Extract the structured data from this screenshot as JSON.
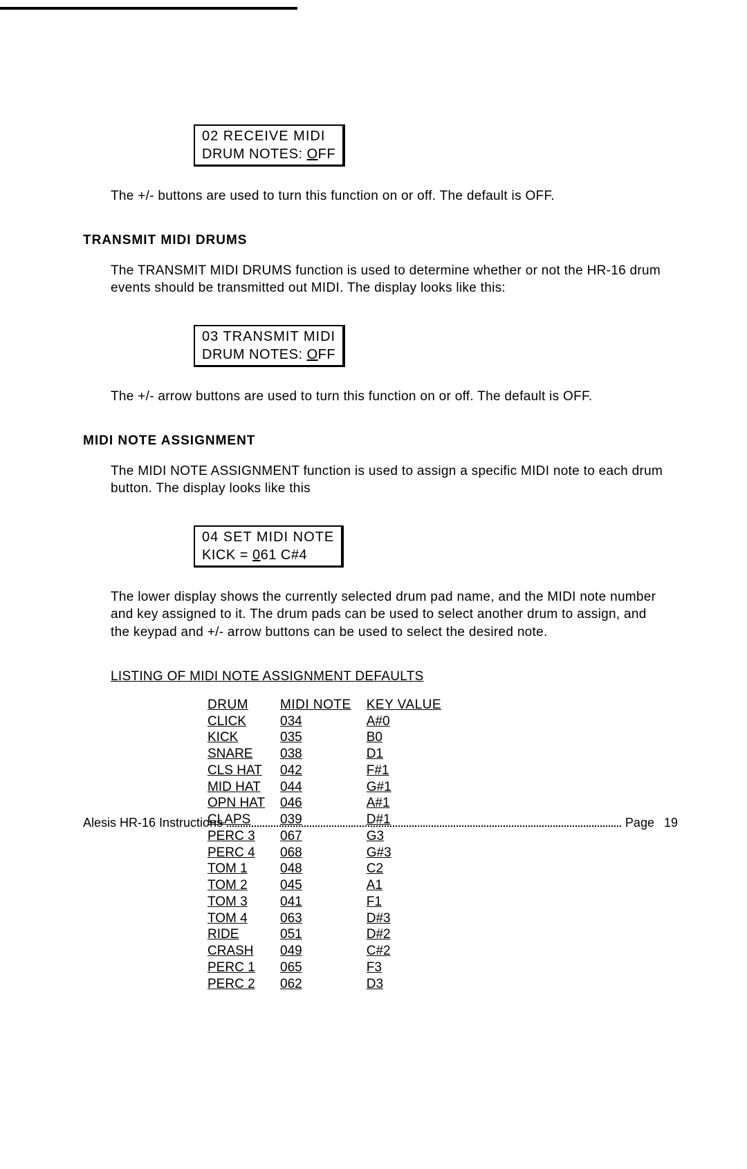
{
  "display1": {
    "line1": "02 RECEIVE MIDI",
    "line2_prefix": "DRUM NOTES: ",
    "line2_value_u": "O",
    "line2_value_rest": "FF"
  },
  "para1": "The +/- buttons are used to turn this function on or off.  The default is OFF.",
  "heading1": "TRANSMIT MIDI DRUMS",
  "para2": "The TRANSMIT MIDI DRUMS function is used to determine whether or not the HR-16 drum events should be transmitted out MIDI.  The display looks like this:",
  "display2": {
    "line1": "03 TRANSMIT MIDI",
    "line2_prefix": "DRUM NOTES: ",
    "line2_value_u": "O",
    "line2_value_rest": "FF"
  },
  "para3": "The +/- arrow buttons are used to turn this function on or off.  The default is OFF.",
  "heading2": "MIDI NOTE ASSIGNMENT",
  "para4": "The MIDI NOTE ASSIGNMENT function is used to assign a specific MIDI note to each drum button.  The display looks like this",
  "display3": {
    "line1": "04 SET MIDI NOTE",
    "line2_prefix": "KICK = ",
    "line2_value_u": "0",
    "line2_value_rest": "61  C#4"
  },
  "para5": "The lower display shows the currently selected drum pad name, and the MIDI note number and key assigned to it.  The drum pads can be used to select another drum to assign, and the keypad and +/- arrow buttons can be used to select the desired note.",
  "table_title": "LISTING OF MIDI NOTE ASSIGNMENT DEFAULTS",
  "table": {
    "headers": [
      "DRUM",
      "MIDI NOTE",
      "KEY VALUE"
    ],
    "rows": [
      [
        "CLICK",
        "034",
        "A#0"
      ],
      [
        "KICK",
        "035",
        "B0"
      ],
      [
        "SNARE",
        "038",
        "D1"
      ],
      [
        "CLS HAT",
        "042",
        "F#1"
      ],
      [
        "MID HAT",
        "044",
        "G#1"
      ],
      [
        "OPN HAT",
        "046",
        "A#1"
      ],
      [
        "CLAPS",
        "039",
        "D#1"
      ],
      [
        "PERC 3",
        "067",
        "G3"
      ],
      [
        "PERC 4",
        "068",
        "G#3"
      ],
      [
        "TOM 1",
        "048",
        "C2"
      ],
      [
        "TOM 2",
        "045",
        "A1"
      ],
      [
        "TOM 3",
        "041",
        "F1"
      ],
      [
        "TOM 4",
        "063",
        "D#3"
      ],
      [
        "RIDE",
        "051",
        "D#2"
      ],
      [
        "CRASH",
        "049",
        "C#2"
      ],
      [
        "PERC 1",
        "065",
        "F3"
      ],
      [
        "PERC 2",
        "062",
        "D3"
      ]
    ]
  },
  "footer": {
    "left": "Alesis HR-16 Instructions",
    "right_label": "Page",
    "right_num": "19"
  }
}
